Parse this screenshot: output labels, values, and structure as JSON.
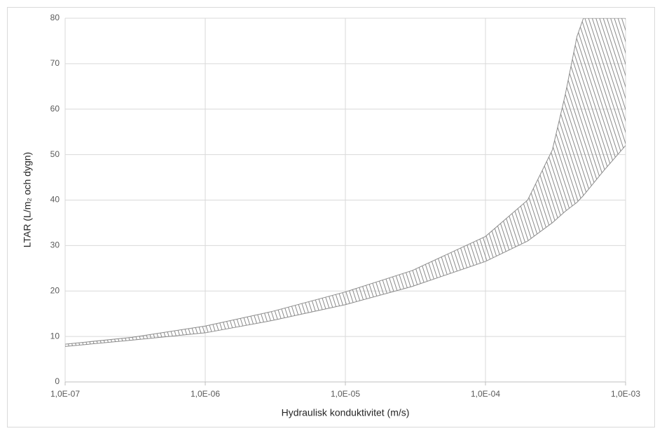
{
  "chart_data": {
    "type": "band",
    "x_label": "Hydraulisk konduktivitet (m/s)",
    "y_label": "LTAR (L/m₂ och dygn)",
    "x": [
      1e-07,
      3e-07,
      1e-06,
      3e-06,
      1e-05,
      3e-05,
      0.0001,
      0.0002,
      0.0003,
      0.00037,
      0.00045,
      0.0005,
      0.0007,
      0.001
    ],
    "series": [
      {
        "color": "#8c8c8c",
        "values": [
          7.8,
          9.2,
          10.8,
          13.5,
          17,
          21,
          26.5,
          31,
          35,
          37.5,
          39.5,
          41,
          46.5,
          52
        ]
      },
      {
        "color": "#8c8c8c",
        "values": [
          8.3,
          9.8,
          12.3,
          15.5,
          19.8,
          24.5,
          32,
          40,
          51,
          63,
          76,
          80,
          80,
          80
        ]
      }
    ],
    "fill_color": "#9a9a9a",
    "xlim": [
      1e-07,
      0.001
    ],
    "xticks": [
      {
        "value": 1e-07,
        "label": "1,0E-07"
      },
      {
        "value": 1e-06,
        "label": "1,0E-06"
      },
      {
        "value": 1e-05,
        "label": "1,0E-05"
      },
      {
        "value": 0.0001,
        "label": "1,0E-04"
      },
      {
        "value": 0.001,
        "label": "1,0E-03"
      }
    ],
    "xscale": "log",
    "ylim": [
      0,
      80
    ],
    "yticks": [
      0,
      10,
      20,
      30,
      40,
      50,
      60,
      70,
      80
    ],
    "grid": true
  }
}
